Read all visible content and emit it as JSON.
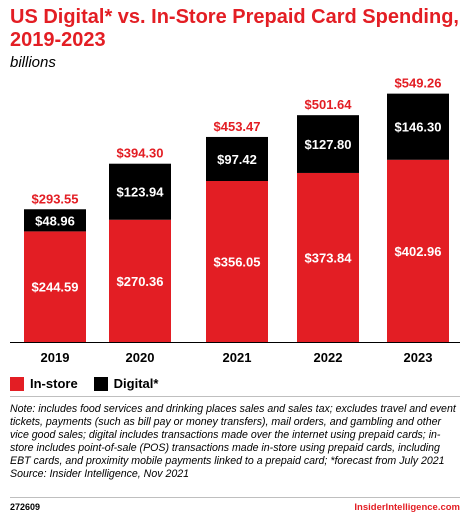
{
  "header": {
    "title": "US Digital* vs. In-Store Prepaid Card Spending, 2019-2023",
    "subtitle": "billions"
  },
  "colors": {
    "in_store": "#e31e24",
    "digital": "#000000",
    "total_label": "#e31e24"
  },
  "chart_data": {
    "type": "bar",
    "stacked": true,
    "categories": [
      "2019",
      "2020",
      "2021",
      "2022",
      "2023"
    ],
    "series": [
      {
        "name": "In-store",
        "values": [
          244.59,
          270.36,
          356.05,
          373.84,
          402.96
        ],
        "labels": [
          "$244.59",
          "$270.36",
          "$356.05",
          "$373.84",
          "$402.96"
        ]
      },
      {
        "name": "Digital*",
        "values": [
          48.96,
          123.94,
          97.42,
          127.8,
          146.3
        ],
        "labels": [
          "$48.96",
          "$123.94",
          "$97.42",
          "$127.80",
          "$146.30"
        ]
      }
    ],
    "totals": [
      293.55,
      394.3,
      453.47,
      501.64,
      549.26
    ],
    "total_labels": [
      "$293.55",
      "$394.30",
      "$453.47",
      "$501.64",
      "$549.26"
    ],
    "ylim": [
      0,
      575
    ],
    "grid": false,
    "legend_position": "bottom-left"
  },
  "legend": {
    "in_store_label": "In-store",
    "digital_label": "Digital*"
  },
  "note": "Note: includes food services and drinking places sales and sales tax; excludes travel and event tickets, payments (such as bill pay or money transfers), mail orders, and gambling and other vice good sales; digital includes transactions made over the internet using prepaid cards; in-store includes point-of-sale (POS) transactions made in-store using prepaid cards, including EBT cards, and proximity mobile payments linked to a prepaid card; *forecast from July 2021",
  "source": "Source: Insider Intelligence, Nov 2021",
  "footer": {
    "chart_id": "272609",
    "brand": "InsiderIntelligence.com"
  }
}
